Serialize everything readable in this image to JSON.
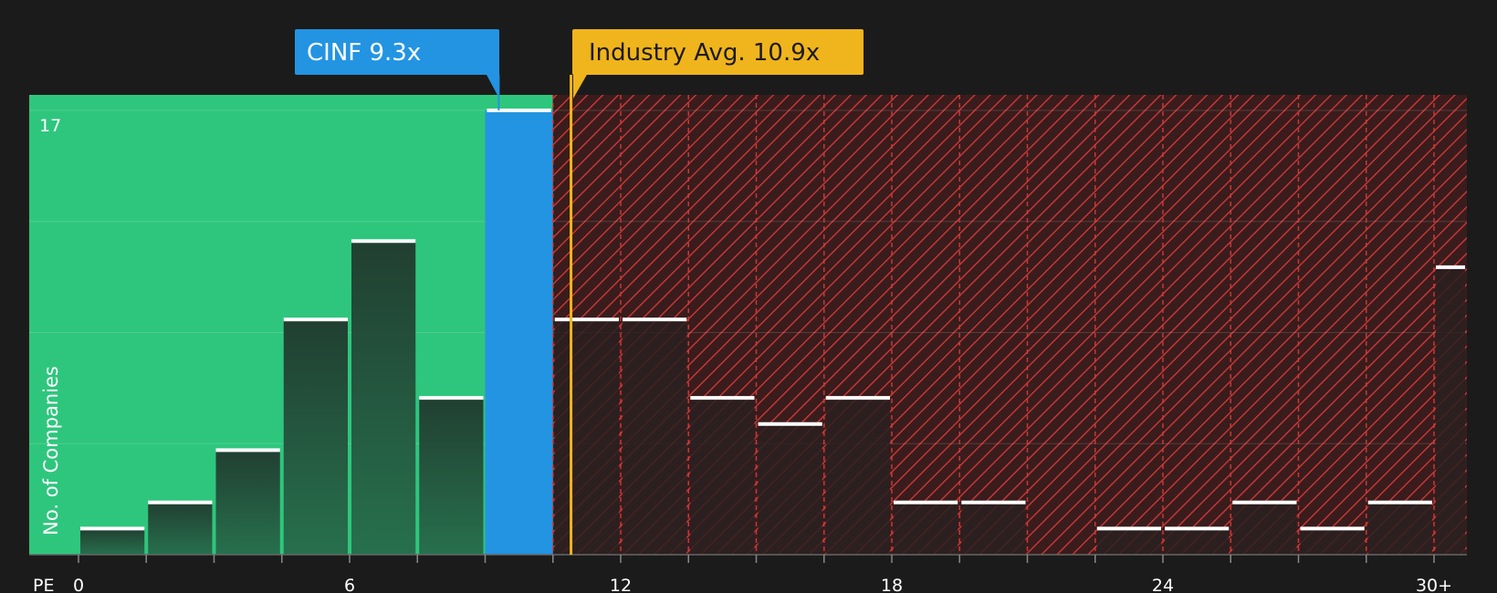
{
  "chart_data": {
    "type": "bar",
    "title": "",
    "xlabel": "PE",
    "ylabel": "No. of Companies",
    "ylim": [
      0,
      17
    ],
    "y_top_tick": "17",
    "x_ticks": [
      {
        "value": 0,
        "label": "0"
      },
      {
        "value": 6,
        "label": "6"
      },
      {
        "value": 12,
        "label": "12"
      },
      {
        "value": 18,
        "label": "18"
      },
      {
        "value": 24,
        "label": "24"
      },
      {
        "value": 30,
        "label": "30+"
      }
    ],
    "bin_width": 1.5,
    "bins": [
      {
        "start": 0,
        "count": 1
      },
      {
        "start": 1.5,
        "count": 2
      },
      {
        "start": 3,
        "count": 4
      },
      {
        "start": 4.5,
        "count": 9
      },
      {
        "start": 6,
        "count": 12
      },
      {
        "start": 7.5,
        "count": 6
      },
      {
        "start": 9,
        "count": 17,
        "highlight": true
      },
      {
        "start": 10.5,
        "count": 9
      },
      {
        "start": 12,
        "count": 9
      },
      {
        "start": 13.5,
        "count": 6
      },
      {
        "start": 15,
        "count": 5
      },
      {
        "start": 16.5,
        "count": 6
      },
      {
        "start": 18,
        "count": 2
      },
      {
        "start": 19.5,
        "count": 2
      },
      {
        "start": 21,
        "count": 0
      },
      {
        "start": 22.5,
        "count": 1
      },
      {
        "start": 24,
        "count": 1
      },
      {
        "start": 25.5,
        "count": 2
      },
      {
        "start": 27,
        "count": 1
      },
      {
        "start": 28.5,
        "count": 2
      },
      {
        "start": 30,
        "count": 11
      }
    ],
    "company": {
      "label": "CINF 9.3x",
      "value": 9.3
    },
    "industry_avg": {
      "label": "Industry Avg. 10.9x",
      "value": 10.9
    },
    "colors": {
      "background": "#1b1b1b",
      "undervalued_zone": "#2ec67d",
      "overvalued_zone": "#3a1c1c",
      "hatch": "#d73a3a",
      "company_bar": "#2394e2",
      "industry_line": "#f0b41c",
      "bar_dark": "#1f3d2f",
      "bar_cap": "#ffffff",
      "grid": "rgba(255,255,255,0.15)"
    }
  }
}
